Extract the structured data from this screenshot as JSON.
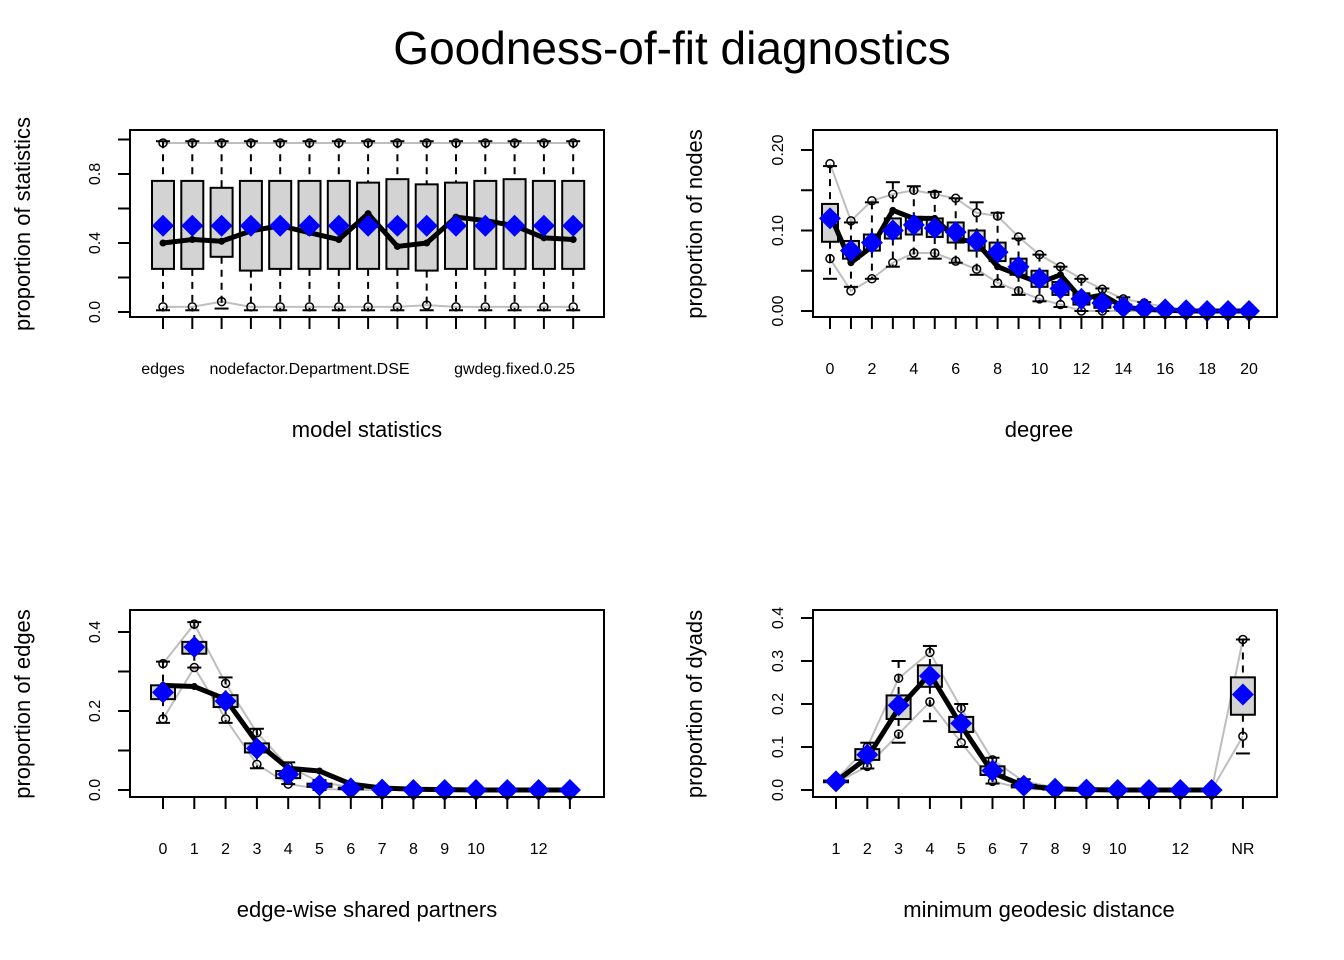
{
  "chart_data": {
    "title": "Goodness-of-fit diagnostics",
    "colors": {
      "observed": "#000000",
      "simulated_mean": "#0000ff",
      "box_fill": "#d3d3d3",
      "envelope": "#bebebe"
    },
    "panels": [
      {
        "id": "model-statistics",
        "type": "box",
        "xlabel": "model statistics",
        "ylabel": "proportion of statistics",
        "ylim": [
          0,
          1.0
        ],
        "yticks": [
          0.0,
          0.2,
          0.4,
          0.6,
          0.8,
          1.0
        ],
        "ytick_labels": [
          "0.0",
          "",
          "0.4",
          "",
          "0.8",
          ""
        ],
        "categories": [
          "1",
          "2",
          "3",
          "4",
          "5",
          "6",
          "7",
          "8",
          "9",
          "10",
          "11",
          "12",
          "13",
          "14",
          "15"
        ],
        "xtick_labels": [
          {
            "index": 0,
            "label": "edges"
          },
          {
            "index": 5,
            "label": "nodefactor.Department.DSE"
          },
          {
            "index": 12,
            "label": "gwdeg.fixed.0.25"
          }
        ],
        "observed": [
          0.4,
          0.42,
          0.41,
          0.47,
          0.5,
          0.46,
          0.42,
          0.57,
          0.38,
          0.4,
          0.55,
          0.53,
          0.5,
          0.43,
          0.42
        ],
        "sim_mean": [
          0.5,
          0.5,
          0.5,
          0.5,
          0.5,
          0.5,
          0.5,
          0.5,
          0.5,
          0.5,
          0.5,
          0.5,
          0.5,
          0.5,
          0.5
        ],
        "box_q1": [
          0.25,
          0.25,
          0.32,
          0.24,
          0.25,
          0.25,
          0.25,
          0.25,
          0.25,
          0.24,
          0.25,
          0.25,
          0.25,
          0.25,
          0.25
        ],
        "box_q3": [
          0.76,
          0.76,
          0.72,
          0.76,
          0.76,
          0.76,
          0.76,
          0.75,
          0.77,
          0.74,
          0.75,
          0.76,
          0.77,
          0.76,
          0.76
        ],
        "whisker_low": [
          0.01,
          0.01,
          0.02,
          0.01,
          0.01,
          0.01,
          0.01,
          0.01,
          0.01,
          0.01,
          0.01,
          0.01,
          0.01,
          0.01,
          0.01
        ],
        "whisker_high": [
          0.99,
          0.99,
          0.99,
          0.99,
          0.99,
          0.99,
          0.99,
          0.99,
          0.99,
          0.99,
          0.99,
          0.99,
          0.99,
          0.99,
          0.99
        ],
        "env_low": [
          0.03,
          0.03,
          0.06,
          0.03,
          0.03,
          0.03,
          0.03,
          0.03,
          0.03,
          0.04,
          0.03,
          0.03,
          0.03,
          0.03,
          0.03
        ],
        "env_high": [
          0.98,
          0.98,
          0.98,
          0.98,
          0.98,
          0.98,
          0.98,
          0.98,
          0.98,
          0.98,
          0.98,
          0.98,
          0.98,
          0.98,
          0.98
        ]
      },
      {
        "id": "degree",
        "type": "box",
        "xlabel": "degree",
        "ylabel": "proportion of nodes",
        "ylim": [
          0,
          0.22
        ],
        "yticks": [
          0.0,
          0.05,
          0.1,
          0.15,
          0.2
        ],
        "ytick_labels": [
          "0.00",
          "",
          "0.10",
          "",
          "0.20"
        ],
        "categories": [
          "0",
          "1",
          "2",
          "3",
          "4",
          "5",
          "6",
          "7",
          "8",
          "9",
          "10",
          "11",
          "12",
          "13",
          "14",
          "15",
          "16",
          "17",
          "18",
          "19",
          "20"
        ],
        "xtick_labels": [
          {
            "index": 0,
            "label": "0"
          },
          {
            "index": 2,
            "label": "2"
          },
          {
            "index": 4,
            "label": "4"
          },
          {
            "index": 6,
            "label": "6"
          },
          {
            "index": 8,
            "label": "8"
          },
          {
            "index": 10,
            "label": "10"
          },
          {
            "index": 12,
            "label": "12"
          },
          {
            "index": 14,
            "label": "14"
          },
          {
            "index": 16,
            "label": "16"
          },
          {
            "index": 18,
            "label": "18"
          },
          {
            "index": 20,
            "label": "20"
          }
        ],
        "observed": [
          0.12,
          0.06,
          0.08,
          0.125,
          0.115,
          0.115,
          0.09,
          0.085,
          0.055,
          0.045,
          0.035,
          0.045,
          0.015,
          0.02,
          0.005,
          0.002,
          0.001,
          0.0,
          0.0,
          0.0,
          0.0
        ],
        "sim_mean": [
          0.115,
          0.075,
          0.085,
          0.1,
          0.107,
          0.103,
          0.098,
          0.087,
          0.073,
          0.055,
          0.04,
          0.028,
          0.015,
          0.01,
          0.005,
          0.003,
          0.002,
          0.001,
          0.0,
          0.0,
          0.0
        ],
        "box_q1": [
          0.086,
          0.065,
          0.075,
          0.09,
          0.095,
          0.092,
          0.085,
          0.075,
          0.062,
          0.045,
          0.03,
          0.02,
          0.008,
          0.004,
          0.002,
          0.001,
          0.0,
          0.0,
          0.0,
          0.0,
          0.0
        ],
        "box_q3": [
          0.133,
          0.087,
          0.095,
          0.115,
          0.117,
          0.115,
          0.11,
          0.1,
          0.085,
          0.065,
          0.05,
          0.036,
          0.022,
          0.015,
          0.008,
          0.005,
          0.003,
          0.001,
          0.0,
          0.0,
          0.0
        ],
        "whisker_low": [
          0.04,
          0.03,
          0.04,
          0.055,
          0.065,
          0.065,
          0.06,
          0.045,
          0.03,
          0.02,
          0.012,
          0.005,
          0.0,
          0.0,
          0.0,
          0.0,
          0.0,
          0.0,
          0.0,
          0.0,
          0.0
        ],
        "whisker_high": [
          0.18,
          0.11,
          0.135,
          0.16,
          0.155,
          0.148,
          0.14,
          0.135,
          0.122,
          0.09,
          0.07,
          0.055,
          0.04,
          0.028,
          0.017,
          0.011,
          0.006,
          0.003,
          0.001,
          0.0,
          0.0
        ],
        "env_low": [
          0.065,
          0.025,
          0.04,
          0.06,
          0.072,
          0.072,
          0.062,
          0.052,
          0.035,
          0.025,
          0.015,
          0.008,
          0.0,
          0.0,
          0.0,
          0.0,
          0.0,
          0.0,
          0.0,
          0.0,
          0.0
        ],
        "env_high": [
          0.183,
          0.112,
          0.137,
          0.145,
          0.15,
          0.145,
          0.14,
          0.122,
          0.118,
          0.092,
          0.07,
          0.055,
          0.04,
          0.027,
          0.015,
          0.01,
          0.005,
          0.002,
          0.001,
          0.0,
          0.0
        ]
      },
      {
        "id": "edge-wise-shared-partners",
        "type": "box",
        "xlabel": "edge-wise shared partners",
        "ylabel": "proportion of edges",
        "ylim": [
          0,
          0.45
        ],
        "yticks": [
          0.0,
          0.1,
          0.2,
          0.3,
          0.4
        ],
        "ytick_labels": [
          "0.0",
          "",
          "0.2",
          "",
          "0.4"
        ],
        "categories": [
          "0",
          "1",
          "2",
          "3",
          "4",
          "5",
          "6",
          "7",
          "8",
          "9",
          "10",
          "11",
          "12",
          "13"
        ],
        "xtick_labels": [
          {
            "index": 0,
            "label": "0"
          },
          {
            "index": 1,
            "label": "1"
          },
          {
            "index": 2,
            "label": "2"
          },
          {
            "index": 3,
            "label": "3"
          },
          {
            "index": 4,
            "label": "4"
          },
          {
            "index": 5,
            "label": "5"
          },
          {
            "index": 6,
            "label": "6"
          },
          {
            "index": 7,
            "label": "7"
          },
          {
            "index": 8,
            "label": "8"
          },
          {
            "index": 9,
            "label": "9"
          },
          {
            "index": 10,
            "label": "10"
          },
          {
            "index": 12,
            "label": "12"
          }
        ],
        "observed": [
          0.265,
          0.262,
          0.23,
          0.12,
          0.055,
          0.048,
          0.015,
          0.005,
          0.002,
          0.001,
          0.0,
          0.0,
          0.0,
          0.0
        ],
        "sim_mean": [
          0.247,
          0.362,
          0.225,
          0.105,
          0.04,
          0.012,
          0.004,
          0.001,
          0.0,
          0.0,
          0.0,
          0.0,
          0.0,
          0.0
        ],
        "box_q1": [
          0.23,
          0.345,
          0.21,
          0.095,
          0.03,
          0.008,
          0.002,
          0.0,
          0.0,
          0.0,
          0.0,
          0.0,
          0.0,
          0.0
        ],
        "box_q3": [
          0.265,
          0.375,
          0.24,
          0.118,
          0.048,
          0.016,
          0.006,
          0.002,
          0.0,
          0.0,
          0.0,
          0.0,
          0.0,
          0.0
        ],
        "whisker_low": [
          0.17,
          0.31,
          0.17,
          0.055,
          0.015,
          0.0,
          0.0,
          0.0,
          0.0,
          0.0,
          0.0,
          0.0,
          0.0,
          0.0
        ],
        "whisker_high": [
          0.325,
          0.425,
          0.285,
          0.155,
          0.07,
          0.025,
          0.01,
          0.004,
          0.0,
          0.0,
          0.0,
          0.0,
          0.0,
          0.0
        ],
        "env_low": [
          0.18,
          0.31,
          0.18,
          0.065,
          0.015,
          0.003,
          0.0,
          0.0,
          0.0,
          0.0,
          0.0,
          0.0,
          0.0,
          0.0
        ],
        "env_high": [
          0.32,
          0.42,
          0.27,
          0.145,
          0.06,
          0.02,
          0.008,
          0.003,
          0.0,
          0.0,
          0.0,
          0.0,
          0.0,
          0.0
        ]
      },
      {
        "id": "minimum-geodesic-distance",
        "type": "box",
        "xlabel": "minimum geodesic distance",
        "ylabel": "proportion of dyads",
        "ylim": [
          0,
          0.4
        ],
        "yticks": [
          0.0,
          0.1,
          0.2,
          0.3,
          0.4
        ],
        "ytick_labels": [
          "0.0",
          "0.1",
          "0.2",
          "0.3",
          "0.4"
        ],
        "categories": [
          "1",
          "2",
          "3",
          "4",
          "5",
          "6",
          "7",
          "8",
          "9",
          "10",
          "11",
          "12",
          "13",
          "NR"
        ],
        "xtick_labels": [
          {
            "index": 0,
            "label": "1"
          },
          {
            "index": 1,
            "label": "2"
          },
          {
            "index": 2,
            "label": "3"
          },
          {
            "index": 3,
            "label": "4"
          },
          {
            "index": 4,
            "label": "5"
          },
          {
            "index": 5,
            "label": "6"
          },
          {
            "index": 6,
            "label": "7"
          },
          {
            "index": 7,
            "label": "8"
          },
          {
            "index": 8,
            "label": "9"
          },
          {
            "index": 9,
            "label": "10"
          },
          {
            "index": 11,
            "label": "12"
          },
          {
            "index": 13,
            "label": "NR"
          }
        ],
        "observed": [
          0.02,
          0.075,
          0.19,
          0.27,
          0.15,
          0.04,
          0.01,
          0.003,
          0.001,
          0.0,
          0.0,
          0.0,
          0.0,
          0.21
        ],
        "sim_mean": [
          0.02,
          0.082,
          0.197,
          0.265,
          0.155,
          0.045,
          0.01,
          0.003,
          0.001,
          0.0,
          0.0,
          0.0,
          0.0,
          0.222
        ],
        "box_q1": [
          0.018,
          0.07,
          0.165,
          0.24,
          0.135,
          0.035,
          0.006,
          0.001,
          0.0,
          0.0,
          0.0,
          0.0,
          0.0,
          0.175
        ],
        "box_q3": [
          0.022,
          0.095,
          0.22,
          0.29,
          0.17,
          0.055,
          0.012,
          0.004,
          0.001,
          0.0,
          0.0,
          0.0,
          0.0,
          0.262
        ],
        "whisker_low": [
          0.016,
          0.05,
          0.11,
          0.16,
          0.1,
          0.015,
          0.002,
          0.0,
          0.0,
          0.0,
          0.0,
          0.0,
          0.0,
          0.085
        ],
        "whisker_high": [
          0.024,
          0.11,
          0.3,
          0.335,
          0.2,
          0.075,
          0.025,
          0.008,
          0.002,
          0.0,
          0.0,
          0.0,
          0.0,
          0.35
        ],
        "env_low": [
          0.017,
          0.055,
          0.13,
          0.205,
          0.11,
          0.02,
          0.003,
          0.0,
          0.0,
          0.0,
          0.0,
          0.0,
          0.0,
          0.125
        ],
        "env_high": [
          0.023,
          0.1,
          0.26,
          0.32,
          0.19,
          0.07,
          0.02,
          0.006,
          0.002,
          0.0,
          0.0,
          0.0,
          0.0,
          0.35
        ]
      }
    ]
  }
}
